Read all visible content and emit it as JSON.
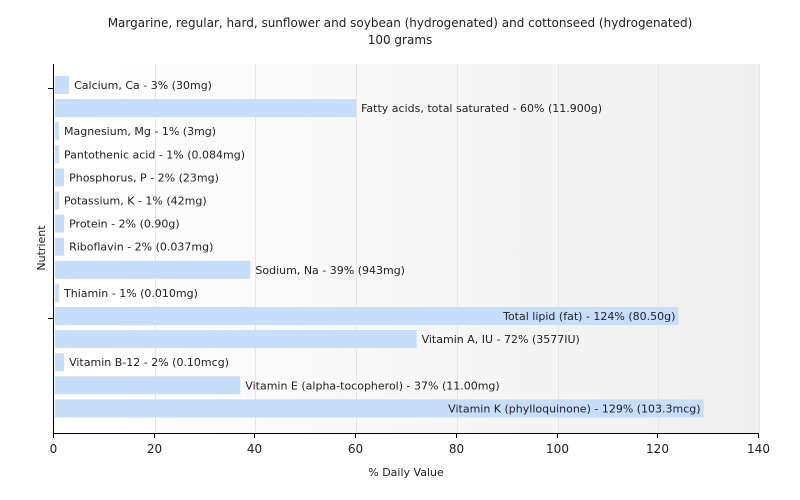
{
  "chart_data": {
    "type": "bar",
    "orientation": "horizontal",
    "title": "Margarine, regular, hard, sunflower and soybean (hydrogenated) and cottonseed (hydrogenated)",
    "subtitle": "100 grams",
    "xlabel": "% Daily Value",
    "ylabel": "Nutrient",
    "xlim": [
      0,
      140
    ],
    "xticks": [
      0,
      20,
      40,
      60,
      80,
      100,
      120,
      140
    ],
    "grid": true,
    "bar_color": "#c6defa",
    "label_position": "right-of-bar; inside-end for longest bars",
    "categories": [
      "Calcium, Ca",
      "Fatty acids, total saturated",
      "Magnesium, Mg",
      "Pantothenic acid",
      "Phosphorus, P",
      "Potassium, K",
      "Protein",
      "Riboflavin",
      "Sodium, Na",
      "Thiamin",
      "Total lipid (fat)",
      "Vitamin A, IU",
      "Vitamin B-12",
      "Vitamin E (alpha-tocopherol)",
      "Vitamin K (phylloquinone)"
    ],
    "values": [
      3,
      60,
      1,
      1,
      2,
      1,
      2,
      2,
      39,
      1,
      124,
      72,
      2,
      37,
      129
    ],
    "labels": [
      "Calcium, Ca - 3% (30mg)",
      "Fatty acids, total saturated - 60% (11.900g)",
      "Magnesium, Mg - 1% (3mg)",
      "Pantothenic acid - 1% (0.084mg)",
      "Phosphorus, P - 2% (23mg)",
      "Potassium, K - 1% (42mg)",
      "Protein - 2% (0.90g)",
      "Riboflavin - 2% (0.037mg)",
      "Sodium, Na - 39% (943mg)",
      "Thiamin - 1% (0.010mg)",
      "Total lipid (fat) - 124% (80.50g)",
      "Vitamin A, IU - 72% (3577IU)",
      "Vitamin B-12 - 2% (0.10mcg)",
      "Vitamin E (alpha-tocopherol) - 37% (11.00mg)",
      "Vitamin K (phylloquinone) - 129% (103.3mcg)"
    ]
  }
}
